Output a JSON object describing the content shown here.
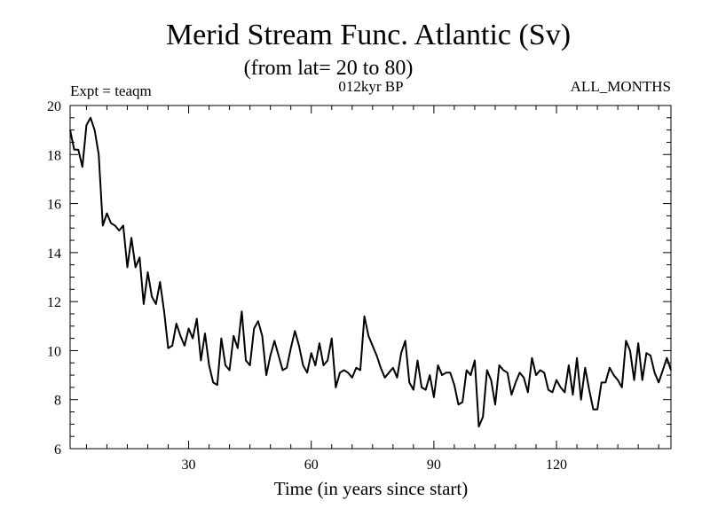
{
  "chart_data": {
    "type": "line",
    "title": "Merid Stream Func. Atlantic (Sv)",
    "subtitle": "(from lat= 20 to 80)",
    "left_label": "Expt = teaqm",
    "center_label": "012kyr BP",
    "right_label": "ALL_MONTHS",
    "xlabel": "Time (in years since start)",
    "ylabel": "",
    "xlim": [
      1,
      148
    ],
    "ylim": [
      6,
      20
    ],
    "xticks": [
      30,
      60,
      90,
      120
    ],
    "yticks": [
      6,
      8,
      10,
      12,
      14,
      16,
      18,
      20
    ],
    "series": [
      {
        "name": "Merid Stream Func. Atlantic",
        "color": "#000000",
        "x": [
          1,
          2,
          3,
          4,
          5,
          6,
          7,
          8,
          9,
          10,
          11,
          12,
          13,
          14,
          15,
          16,
          17,
          18,
          19,
          20,
          21,
          22,
          23,
          24,
          25,
          26,
          27,
          28,
          29,
          30,
          31,
          32,
          33,
          34,
          35,
          36,
          37,
          38,
          39,
          40,
          41,
          42,
          43,
          44,
          45,
          46,
          47,
          48,
          49,
          50,
          51,
          52,
          53,
          54,
          55,
          56,
          57,
          58,
          59,
          60,
          61,
          62,
          63,
          64,
          65,
          66,
          67,
          68,
          69,
          70,
          71,
          72,
          73,
          74,
          75,
          76,
          77,
          78,
          79,
          80,
          81,
          82,
          83,
          84,
          85,
          86,
          87,
          88,
          89,
          90,
          91,
          92,
          93,
          94,
          95,
          96,
          97,
          98,
          99,
          100,
          101,
          102,
          103,
          104,
          105,
          106,
          107,
          108,
          109,
          110,
          111,
          112,
          113,
          114,
          115,
          116,
          117,
          118,
          119,
          120,
          121,
          122,
          123,
          124,
          125,
          126,
          127,
          128,
          129,
          130,
          131,
          132,
          133,
          134,
          135,
          136,
          137,
          138,
          139,
          140,
          141,
          142,
          143,
          144,
          145,
          146,
          147,
          148
        ],
        "values": [
          19.0,
          18.2,
          18.2,
          17.5,
          19.2,
          19.5,
          19.0,
          18.0,
          15.1,
          15.6,
          15.2,
          15.1,
          14.9,
          15.1,
          13.4,
          14.6,
          13.4,
          13.8,
          11.9,
          13.2,
          12.2,
          11.9,
          12.8,
          11.6,
          10.1,
          10.2,
          11.1,
          10.6,
          10.2,
          10.9,
          10.5,
          11.3,
          9.6,
          10.7,
          9.4,
          8.7,
          8.6,
          10.5,
          9.4,
          9.2,
          10.6,
          10.1,
          11.6,
          9.6,
          9.4,
          10.9,
          11.2,
          10.6,
          9.0,
          9.8,
          10.4,
          9.8,
          9.2,
          9.3,
          10.1,
          10.8,
          10.2,
          9.4,
          9.1,
          9.9,
          9.4,
          10.3,
          9.4,
          9.6,
          10.5,
          8.5,
          9.1,
          9.2,
          9.1,
          8.9,
          9.3,
          9.2,
          11.4,
          10.6,
          10.2,
          9.8,
          9.3,
          8.9,
          9.1,
          9.3,
          8.9,
          9.9,
          10.4,
          8.7,
          8.4,
          9.6,
          8.5,
          8.4,
          9.0,
          8.1,
          9.4,
          9.0,
          9.1,
          9.1,
          8.6,
          7.8,
          7.9,
          9.2,
          9.0,
          9.6,
          6.9,
          7.3,
          9.2,
          8.8,
          7.8,
          9.4,
          9.2,
          9.1,
          8.2,
          8.7,
          9.1,
          8.9,
          8.3,
          9.7,
          9.0,
          9.2,
          9.1,
          8.4,
          8.3,
          8.8,
          8.5,
          8.3,
          9.4,
          8.2,
          9.7,
          8.0,
          9.3,
          8.4,
          7.6,
          7.6,
          8.7,
          8.7,
          9.3,
          9.0,
          8.8,
          8.5,
          10.4,
          10.0,
          8.8,
          10.3,
          8.8,
          9.9,
          9.8,
          9.1,
          8.7,
          9.2,
          9.7,
          9.2
        ]
      }
    ],
    "grid": false,
    "legend": "none"
  }
}
